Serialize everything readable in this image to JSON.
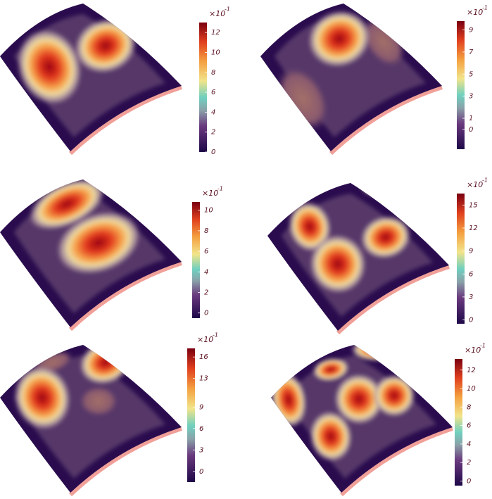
{
  "panels": [
    {
      "colorbar": {
        "multiplier": "×10",
        "exponent": "-1",
        "lim": [
          0,
          13
        ],
        "ticks": [
          0,
          2,
          4,
          6,
          8,
          10,
          12
        ]
      }
    },
    {
      "colorbar": {
        "multiplier": "×10",
        "exponent": "-1",
        "lim": [
          -1.8,
          9.8
        ],
        "ticks": [
          0,
          1,
          3,
          5,
          7,
          9
        ]
      }
    },
    {
      "colorbar": {
        "multiplier": "×10",
        "exponent": "-1",
        "lim": [
          -0.5,
          10.8
        ],
        "ticks": [
          0,
          2,
          4,
          6,
          8,
          10
        ]
      }
    },
    {
      "colorbar": {
        "multiplier": "×10",
        "exponent": "-1",
        "lim": [
          -0.5,
          16.5
        ],
        "ticks": [
          0,
          3,
          6,
          9,
          12,
          15
        ]
      }
    },
    {
      "colorbar": {
        "multiplier": "×10",
        "exponent": "-1",
        "lim": [
          -1.5,
          17.2
        ],
        "ticks": [
          0,
          3,
          6,
          9,
          13,
          16
        ]
      }
    },
    {
      "colorbar": {
        "multiplier": "×10",
        "exponent": "-1",
        "lim": [
          -0.5,
          13.2
        ],
        "ticks": [
          0,
          2,
          4,
          6,
          8,
          10,
          12
        ]
      }
    }
  ]
}
